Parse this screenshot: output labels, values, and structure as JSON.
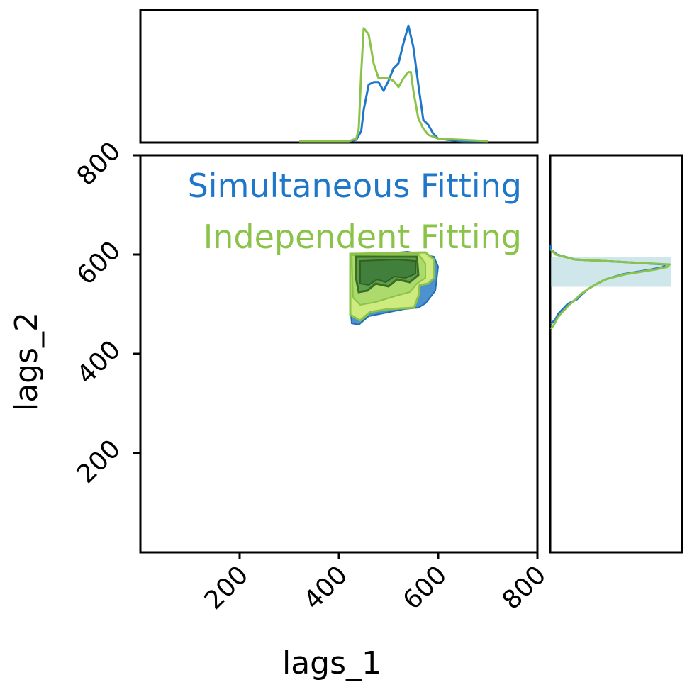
{
  "chart_data": {
    "type": "corner",
    "xlabel": "lags_1",
    "ylabel": "lags_2",
    "xlim": [
      0,
      800
    ],
    "ylim": [
      0,
      800
    ],
    "xticks": [
      200,
      400,
      600,
      800
    ],
    "yticks": [
      200,
      400,
      600,
      800
    ],
    "legend": [
      {
        "text": "Simultaneous Fitting",
        "color": "#1f77c9"
      },
      {
        "text": "Independent Fitting",
        "color": "#8bc34a"
      }
    ],
    "series": [
      {
        "name": "Simultaneous Fitting",
        "color": "#1f77c9",
        "marginal_x": {
          "x": [
            420,
            435,
            445,
            450,
            460,
            470,
            480,
            490,
            500,
            510,
            520,
            530,
            540,
            550,
            560,
            570,
            580,
            590,
            600,
            620,
            650,
            700
          ],
          "density": [
            0.0,
            0.01,
            0.08,
            0.25,
            0.45,
            0.47,
            0.47,
            0.4,
            0.48,
            0.58,
            0.62,
            0.78,
            0.92,
            0.75,
            0.45,
            0.17,
            0.13,
            0.06,
            0.02,
            0.01,
            0.0,
            0.0
          ]
        },
        "marginal_y": {
          "y": [
            460,
            470,
            480,
            490,
            500,
            510,
            520,
            530,
            540,
            550,
            560,
            570,
            575,
            580,
            585,
            590,
            600,
            610,
            620
          ],
          "density": [
            0.0,
            0.04,
            0.06,
            0.1,
            0.14,
            0.22,
            0.26,
            0.31,
            0.38,
            0.46,
            0.6,
            0.85,
            0.95,
            0.96,
            0.6,
            0.2,
            0.05,
            0.0,
            0.0
          ]
        },
        "contour_x": [
          440,
          600
        ],
        "contour_y": [
          465,
          605
        ]
      },
      {
        "name": "Independent Fitting",
        "color": "#8bc34a",
        "marginal_x": {
          "x": [
            320,
            420,
            435,
            440,
            445,
            450,
            460,
            470,
            480,
            490,
            500,
            510,
            520,
            530,
            540,
            545,
            550,
            560,
            570,
            580,
            600,
            650,
            700
          ],
          "density": [
            0.0,
            0.0,
            0.02,
            0.1,
            0.55,
            0.9,
            0.85,
            0.62,
            0.5,
            0.5,
            0.5,
            0.48,
            0.43,
            0.5,
            0.55,
            0.55,
            0.4,
            0.18,
            0.1,
            0.05,
            0.02,
            0.01,
            0.0
          ]
        },
        "marginal_y": {
          "y": [
            450,
            460,
            470,
            480,
            490,
            500,
            510,
            520,
            530,
            540,
            550,
            560,
            570,
            575,
            580,
            585,
            590,
            600,
            610
          ],
          "density": [
            0.0,
            0.03,
            0.05,
            0.08,
            0.12,
            0.16,
            0.21,
            0.25,
            0.31,
            0.38,
            0.46,
            0.62,
            0.88,
            0.98,
            1.0,
            0.6,
            0.2,
            0.04,
            0.0
          ]
        },
        "contour_x": [
          435,
          600
        ],
        "contour_y": [
          480,
          600
        ]
      }
    ]
  }
}
